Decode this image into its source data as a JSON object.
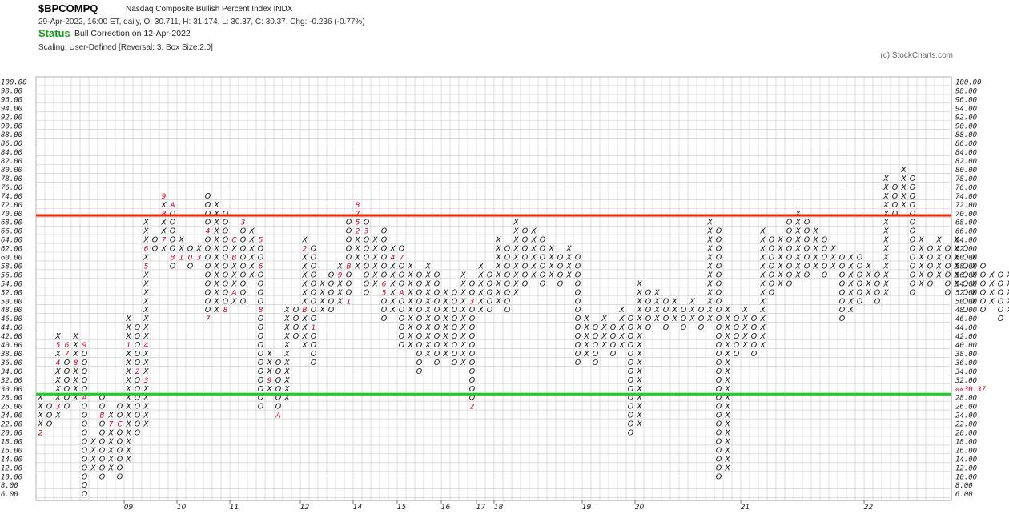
{
  "header": {
    "symbol": "$BPCOMPQ",
    "description": "Nasdaq Composite Bullish Percent Index  INDX",
    "info": "29-Apr-2022, 16:00 ET, daily, O: 30.711, H: 31.174, L: 30.37, C: 30.37, Chg: -0.236 (-0.77%)",
    "status_label": "Status",
    "status_text": "Bull Correction on 12-Apr-2022",
    "scaling": "Scaling: User-Defined [Reversal: 3, Box Size:2.0]",
    "copyright": "(c) StockCharts.com"
  },
  "colors": {
    "x_mark": "#111111",
    "o_mark": "#111111",
    "month_mark": "#c00020",
    "red_line": "#ee2200",
    "green_line": "#22cc22",
    "grid": "#c8c8c8"
  },
  "chart_data": {
    "type": "point-and-figure",
    "title": "$BPCOMPQ",
    "ylim": [
      6,
      100
    ],
    "box_size": 2,
    "reversal": 3,
    "grid": true,
    "y_ticks_left": [
      "100.00",
      "98.00",
      "96.00",
      "94.00",
      "92.00",
      "90.00",
      "88.00",
      "86.00",
      "84.00",
      "82.00",
      "80.00",
      "78.00",
      "76.00",
      "74.00",
      "72.00",
      "70.00",
      "68.00",
      "66.00",
      "64.00",
      "62.00",
      "60.00",
      "58.00",
      "56.00",
      "54.00",
      "52.00",
      "50.00",
      "48.00",
      "46.00",
      "44.00",
      "42.00",
      "40.00",
      "38.00",
      "36.00",
      "34.00",
      "32.00",
      "30.00",
      "28.00",
      "26.00",
      "24.00",
      "22.00",
      "20.00",
      "18.00",
      "16.00",
      "14.00",
      "12.00",
      "10.00",
      "8.00",
      "6.00"
    ],
    "y_ticks_right": [
      "100.00",
      "98.00",
      "96.00",
      "94.00",
      "92.00",
      "90.00",
      "88.00",
      "86.00",
      "84.00",
      "82.00",
      "80.00",
      "78.00",
      "76.00",
      "74.00",
      "72.00",
      "70.00",
      "68.00",
      "66.00",
      "64.00",
      "62.00",
      "60.00",
      "58.00",
      "56.00",
      "54.00",
      "52.00",
      "50.00",
      "48.00",
      "46.00",
      "44.00",
      "42.00",
      "40.00",
      "38.00",
      "36.00",
      "34.00",
      "32.00",
      "30.37",
      "28.00",
      "26.00",
      "24.00",
      "22.00",
      "20.00",
      "18.00",
      "16.00",
      "14.00",
      "12.00",
      "10.00",
      "8.00",
      "6.00"
    ],
    "x_year_labels": [
      {
        "label": "09",
        "column": 10
      },
      {
        "label": "10",
        "column": 16
      },
      {
        "label": "11",
        "column": 22
      },
      {
        "label": "12",
        "column": 30
      },
      {
        "label": "14",
        "column": 36
      },
      {
        "label": "15",
        "column": 41
      },
      {
        "label": "16",
        "column": 46
      },
      {
        "label": "17",
        "column": 50
      },
      {
        "label": "18",
        "column": 52
      },
      {
        "label": "19",
        "column": 62
      },
      {
        "label": "20",
        "column": 68
      },
      {
        "label": "21",
        "column": 80
      },
      {
        "label": "22",
        "column": 94
      }
    ],
    "reference_lines": [
      {
        "value": 69.5,
        "color_key": "red_line"
      },
      {
        "value": 28.7,
        "color_key": "green_line"
      }
    ],
    "last_value": "30.37",
    "columns": [
      {
        "t": "X",
        "lo": 20,
        "hi": 28,
        "marks": {
          "20": "2"
        }
      },
      {
        "t": "O",
        "lo": 22,
        "hi": 26
      },
      {
        "t": "X",
        "lo": 24,
        "hi": 42,
        "marks": {
          "26": "3",
          "36": "4",
          "40": "5"
        }
      },
      {
        "t": "O",
        "lo": 26,
        "hi": 40,
        "marks": {
          "38": "7",
          "40": "6"
        }
      },
      {
        "t": "X",
        "lo": 28,
        "hi": 42,
        "marks": {
          "36": "8"
        }
      },
      {
        "t": "O",
        "lo": 6,
        "hi": 40,
        "marks": {
          "28": "A",
          "40": "9"
        }
      },
      {
        "t": "X",
        "lo": 12,
        "hi": 18
      },
      {
        "t": "O",
        "lo": 10,
        "hi": 28,
        "marks": {
          "24": "B"
        }
      },
      {
        "t": "X",
        "lo": 12,
        "hi": 24,
        "marks": {
          "22": "7"
        }
      },
      {
        "t": "O",
        "lo": 10,
        "hi": 26,
        "marks": {
          "22": "C"
        }
      },
      {
        "t": "X",
        "lo": 14,
        "hi": 46,
        "marks": {
          "40": "1"
        }
      },
      {
        "t": "O",
        "lo": 20,
        "hi": 44,
        "marks": {
          "34": "2"
        }
      },
      {
        "t": "X",
        "lo": 22,
        "hi": 68,
        "marks": {
          "32": "3",
          "40": "4",
          "58": "5",
          "62": "6"
        }
      },
      {
        "t": "O",
        "lo": 62,
        "hi": 64
      },
      {
        "t": "X",
        "lo": 62,
        "hi": 74,
        "marks": {
          "70": "8",
          "74": "9",
          "64": "7"
        }
      },
      {
        "t": "O",
        "lo": 58,
        "hi": 72,
        "marks": {
          "60": "B",
          "72": "A"
        }
      },
      {
        "t": "X",
        "lo": 60,
        "hi": 64,
        "marks": {
          "60": "1"
        }
      },
      {
        "t": "O",
        "lo": 58,
        "hi": 62,
        "marks": {
          "60": "0"
        }
      },
      {
        "t": "X",
        "lo": 60,
        "hi": 62,
        "marks": {
          "60": "3"
        }
      },
      {
        "t": "O",
        "lo": 46,
        "hi": 74,
        "marks": {
          "46": "7",
          "66": "4"
        }
      },
      {
        "t": "X",
        "lo": 48,
        "hi": 72
      },
      {
        "t": "O",
        "lo": 48,
        "hi": 70,
        "marks": {
          "48": "8"
        }
      },
      {
        "t": "X",
        "lo": 50,
        "hi": 64,
        "marks": {
          "52": "A",
          "60": "B",
          "64": "C",
          "68": "1"
        }
      },
      {
        "t": "O",
        "lo": 50,
        "hi": 68,
        "marks": {
          "68": "3"
        }
      },
      {
        "t": "X",
        "lo": 56,
        "hi": 66
      },
      {
        "t": "O",
        "lo": 26,
        "hi": 64,
        "marks": {
          "48": "8",
          "58": "6",
          "64": "5"
        }
      },
      {
        "t": "X",
        "lo": 30,
        "hi": 38,
        "marks": {
          "32": "9"
        }
      },
      {
        "t": "O",
        "lo": 24,
        "hi": 36,
        "marks": {
          "24": "A"
        }
      },
      {
        "t": "X",
        "lo": 28,
        "hi": 48
      },
      {
        "t": "O",
        "lo": 42,
        "hi": 48
      },
      {
        "t": "X",
        "lo": 40,
        "hi": 64,
        "marks": {
          "48": "B",
          "62": "2"
        }
      },
      {
        "t": "O",
        "lo": 36,
        "hi": 62,
        "marks": {
          "44": "1"
        }
      },
      {
        "t": "X",
        "lo": 48,
        "hi": 54
      },
      {
        "t": "O",
        "lo": 48,
        "hi": 56
      },
      {
        "t": "X",
        "lo": 50,
        "hi": 58,
        "marks": {
          "56": "9"
        }
      },
      {
        "t": "O",
        "lo": 50,
        "hi": 68,
        "marks": {
          "50": "1",
          "58": "B"
        }
      },
      {
        "t": "X",
        "lo": 58,
        "hi": 72,
        "marks": {
          "66": "2",
          "68": "5",
          "70": "7",
          "72": "8"
        }
      },
      {
        "t": "O",
        "lo": 52,
        "hi": 68,
        "marks": {
          "66": "3"
        }
      },
      {
        "t": "X",
        "lo": 54,
        "hi": 64
      },
      {
        "t": "O",
        "lo": 46,
        "hi": 66,
        "marks": {
          "52": "5",
          "54": "6"
        }
      },
      {
        "t": "X",
        "lo": 48,
        "hi": 62,
        "marks": {
          "60": "4"
        }
      },
      {
        "t": "O",
        "lo": 40,
        "hi": 62,
        "marks": {
          "52": "A",
          "60": "7"
        }
      },
      {
        "t": "X",
        "lo": 40,
        "hi": 58
      },
      {
        "t": "O",
        "lo": 34,
        "hi": 56
      },
      {
        "t": "X",
        "lo": 38,
        "hi": 58
      },
      {
        "t": "O",
        "lo": 36,
        "hi": 56
      },
      {
        "t": "X",
        "lo": 38,
        "hi": 52
      },
      {
        "t": "O",
        "lo": 36,
        "hi": 52
      },
      {
        "t": "X",
        "lo": 36,
        "hi": 56
      },
      {
        "t": "O",
        "lo": 26,
        "hi": 54,
        "marks": {
          "26": "2",
          "50": "3"
        }
      },
      {
        "t": "X",
        "lo": 48,
        "hi": 58
      },
      {
        "t": "O",
        "lo": 48,
        "hi": 56
      },
      {
        "t": "X",
        "lo": 50,
        "hi": 64
      },
      {
        "t": "O",
        "lo": 48,
        "hi": 62
      },
      {
        "t": "X",
        "lo": 52,
        "hi": 68
      },
      {
        "t": "O",
        "lo": 54,
        "hi": 66
      },
      {
        "t": "X",
        "lo": 56,
        "hi": 66
      },
      {
        "t": "O",
        "lo": 54,
        "hi": 64
      },
      {
        "t": "X",
        "lo": 56,
        "hi": 62
      },
      {
        "t": "O",
        "lo": 54,
        "hi": 60
      },
      {
        "t": "X",
        "lo": 56,
        "hi": 62
      },
      {
        "t": "O",
        "lo": 36,
        "hi": 60
      },
      {
        "t": "X",
        "lo": 38,
        "hi": 46
      },
      {
        "t": "O",
        "lo": 36,
        "hi": 44
      },
      {
        "t": "X",
        "lo": 40,
        "hi": 46
      },
      {
        "t": "O",
        "lo": 38,
        "hi": 44
      },
      {
        "t": "X",
        "lo": 40,
        "hi": 48
      },
      {
        "t": "O",
        "lo": 20,
        "hi": 46
      },
      {
        "t": "X",
        "lo": 22,
        "hi": 54
      },
      {
        "t": "O",
        "lo": 44,
        "hi": 52
      },
      {
        "t": "X",
        "lo": 46,
        "hi": 52
      },
      {
        "t": "O",
        "lo": 44,
        "hi": 50
      },
      {
        "t": "X",
        "lo": 46,
        "hi": 50
      },
      {
        "t": "O",
        "lo": 44,
        "hi": 48
      },
      {
        "t": "X",
        "lo": 46,
        "hi": 50
      },
      {
        "t": "O",
        "lo": 44,
        "hi": 48
      },
      {
        "t": "X",
        "lo": 46,
        "hi": 68
      },
      {
        "t": "O",
        "lo": 10,
        "hi": 66
      },
      {
        "t": "X",
        "lo": 12,
        "hi": 48
      },
      {
        "t": "O",
        "lo": 38,
        "hi": 46
      },
      {
        "t": "X",
        "lo": 40,
        "hi": 48
      },
      {
        "t": "O",
        "lo": 38,
        "hi": 46
      },
      {
        "t": "X",
        "lo": 40,
        "hi": 66
      },
      {
        "t": "O",
        "lo": 52,
        "hi": 64
      },
      {
        "t": "X",
        "lo": 54,
        "hi": 64
      },
      {
        "t": "O",
        "lo": 54,
        "hi": 68
      },
      {
        "t": "X",
        "lo": 56,
        "hi": 70
      },
      {
        "t": "O",
        "lo": 56,
        "hi": 68
      },
      {
        "t": "X",
        "lo": 58,
        "hi": 66
      },
      {
        "t": "O",
        "lo": 56,
        "hi": 64
      },
      {
        "t": "X",
        "lo": 58,
        "hi": 62
      },
      {
        "t": "O",
        "lo": 46,
        "hi": 60
      },
      {
        "t": "X",
        "lo": 48,
        "hi": 60
      },
      {
        "t": "O",
        "lo": 50,
        "hi": 60
      },
      {
        "t": "X",
        "lo": 52,
        "hi": 58
      },
      {
        "t": "O",
        "lo": 50,
        "hi": 56
      },
      {
        "t": "X",
        "lo": 52,
        "hi": 78
      },
      {
        "t": "O",
        "lo": 70,
        "hi": 76
      },
      {
        "t": "X",
        "lo": 72,
        "hi": 80
      },
      {
        "t": "O",
        "lo": 52,
        "hi": 78
      },
      {
        "t": "X",
        "lo": 54,
        "hi": 64
      },
      {
        "t": "O",
        "lo": 54,
        "hi": 62
      },
      {
        "t": "X",
        "lo": 56,
        "hi": 64
      },
      {
        "t": "O",
        "lo": 52,
        "hi": 62
      },
      {
        "t": "X",
        "lo": 54,
        "hi": 64
      },
      {
        "t": "O",
        "lo": 48,
        "hi": 62
      },
      {
        "t": "X",
        "lo": 50,
        "hi": 60
      },
      {
        "t": "O",
        "lo": 48,
        "hi": 58
      },
      {
        "t": "X",
        "lo": 50,
        "hi": 56
      },
      {
        "t": "O",
        "lo": 46,
        "hi": 56
      },
      {
        "t": "X",
        "lo": 48,
        "hi": 56
      },
      {
        "t": "O",
        "lo": 40,
        "hi": 54
      },
      {
        "t": "X",
        "lo": 42,
        "hi": 48
      },
      {
        "t": "O",
        "lo": 40,
        "hi": 46
      },
      {
        "t": "X",
        "lo": 42,
        "hi": 46
      },
      {
        "t": "O",
        "lo": 28,
        "hi": 44
      },
      {
        "t": "X",
        "lo": 30,
        "hi": 42
      },
      {
        "t": "O",
        "lo": 28,
        "hi": 40
      },
      {
        "t": "X",
        "lo": 30,
        "hi": 40
      },
      {
        "t": "O",
        "lo": 30,
        "hi": 38
      },
      {
        "t": "X",
        "lo": 32,
        "hi": 46
      },
      {
        "t": "O",
        "lo": 30,
        "hi": 46
      }
    ]
  }
}
